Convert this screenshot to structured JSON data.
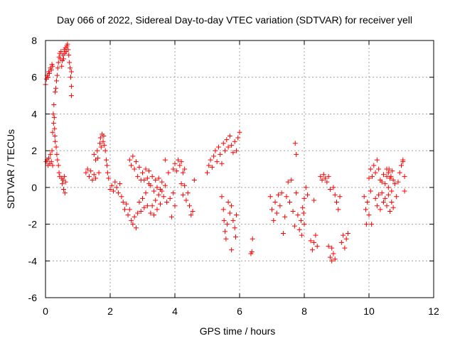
{
  "chart_data": {
    "type": "scatter",
    "title": "Day 066 of 2022, Sidereal Day-to-day VTEC variation (SDTVAR) for receiver yell",
    "xlabel": "GPS time / hours",
    "ylabel": "SDTVAR / TECUs",
    "xlim": [
      0,
      12
    ],
    "ylim": [
      -6,
      8
    ],
    "x_ticks": [
      0,
      2,
      4,
      6,
      8,
      10,
      12
    ],
    "y_ticks": [
      -6,
      -4,
      -2,
      0,
      2,
      4,
      6,
      8
    ],
    "grid": true,
    "legend": "none",
    "marker": "plus",
    "series": [
      {
        "name": "SDTVAR",
        "color": "#ff0000",
        "points": [
          [
            0.0,
            5.6
          ],
          [
            0.03,
            5.9
          ],
          [
            0.05,
            6.1
          ],
          [
            0.08,
            6.0
          ],
          [
            0.1,
            6.3
          ],
          [
            0.12,
            6.2
          ],
          [
            0.15,
            6.5
          ],
          [
            0.18,
            6.4
          ],
          [
            0.2,
            6.7
          ],
          [
            0.22,
            6.6
          ],
          [
            0.02,
            1.4
          ],
          [
            0.05,
            1.5
          ],
          [
            0.08,
            1.2
          ],
          [
            0.1,
            1.6
          ],
          [
            0.13,
            1.3
          ],
          [
            0.15,
            1.8
          ],
          [
            0.18,
            1.4
          ],
          [
            0.2,
            2.0
          ],
          [
            0.22,
            1.2
          ],
          [
            0.22,
            3.0
          ],
          [
            0.24,
            4.0
          ],
          [
            0.25,
            3.5
          ],
          [
            0.26,
            4.5
          ],
          [
            0.27,
            3.8
          ],
          [
            0.28,
            3.2
          ],
          [
            0.29,
            2.8
          ],
          [
            0.3,
            2.5
          ],
          [
            0.3,
            5.2
          ],
          [
            0.32,
            5.4
          ],
          [
            0.34,
            5.8
          ],
          [
            0.36,
            6.1
          ],
          [
            0.38,
            6.5
          ],
          [
            0.4,
            6.8
          ],
          [
            0.42,
            7.1
          ],
          [
            0.44,
            7.3
          ],
          [
            0.46,
            7.0
          ],
          [
            0.48,
            7.4
          ],
          [
            0.33,
            2.2
          ],
          [
            0.35,
            1.8
          ],
          [
            0.37,
            1.5
          ],
          [
            0.4,
            1.2
          ],
          [
            0.42,
            0.8
          ],
          [
            0.44,
            0.6
          ],
          [
            0.5,
            6.6
          ],
          [
            0.52,
            6.9
          ],
          [
            0.54,
            7.2
          ],
          [
            0.56,
            7.0
          ],
          [
            0.58,
            7.5
          ],
          [
            0.6,
            7.3
          ],
          [
            0.62,
            7.6
          ],
          [
            0.64,
            7.4
          ],
          [
            0.66,
            7.7
          ],
          [
            0.68,
            7.8
          ],
          [
            0.5,
            0.5
          ],
          [
            0.52,
            0.2
          ],
          [
            0.54,
            0.4
          ],
          [
            0.56,
            -0.1
          ],
          [
            0.58,
            0.6
          ],
          [
            0.6,
            -0.3
          ],
          [
            0.62,
            0.3
          ],
          [
            0.7,
            7.5
          ],
          [
            0.72,
            7.2
          ],
          [
            0.74,
            6.8
          ],
          [
            0.76,
            6.5
          ],
          [
            0.78,
            6.0
          ],
          [
            0.8,
            5.5
          ],
          [
            0.8,
            5.0
          ],
          [
            0.8,
            6.3
          ],
          [
            1.25,
            0.8
          ],
          [
            1.3,
            1.0
          ],
          [
            1.35,
            0.6
          ],
          [
            1.4,
            0.9
          ],
          [
            1.45,
            0.4
          ],
          [
            1.5,
            0.7
          ],
          [
            1.5,
            1.8
          ],
          [
            1.55,
            1.5
          ],
          [
            1.55,
            0.5
          ],
          [
            1.6,
            2.0
          ],
          [
            1.62,
            1.6
          ],
          [
            1.65,
            0.8
          ],
          [
            1.68,
            2.4
          ],
          [
            1.7,
            2.7
          ],
          [
            1.72,
            2.2
          ],
          [
            1.75,
            2.9
          ],
          [
            1.78,
            2.5
          ],
          [
            1.8,
            2.8
          ],
          [
            1.82,
            2.3
          ],
          [
            1.85,
            2.0
          ],
          [
            1.88,
            1.5
          ],
          [
            1.9,
            1.2
          ],
          [
            1.92,
            0.8
          ],
          [
            1.95,
            0.5
          ],
          [
            2.0,
            -0.1
          ],
          [
            2.05,
            0.1
          ],
          [
            2.1,
            -0.2
          ],
          [
            2.15,
            0.3
          ],
          [
            2.2,
            0.0
          ],
          [
            2.25,
            -0.3
          ],
          [
            2.3,
            0.2
          ],
          [
            2.35,
            -0.5
          ],
          [
            2.4,
            -0.8
          ],
          [
            2.45,
            -1.2
          ],
          [
            2.5,
            -0.9
          ],
          [
            2.55,
            -1.5
          ],
          [
            2.6,
            -1.2
          ],
          [
            2.65,
            -1.8
          ],
          [
            2.7,
            -2.0
          ],
          [
            2.75,
            -1.6
          ],
          [
            2.8,
            -2.2
          ],
          [
            2.6,
            1.5
          ],
          [
            2.65,
            1.2
          ],
          [
            2.7,
            1.7
          ],
          [
            2.75,
            1.0
          ],
          [
            2.8,
            1.4
          ],
          [
            2.85,
            0.6
          ],
          [
            2.9,
            1.1
          ],
          [
            2.95,
            0.4
          ],
          [
            2.85,
            -1.4
          ],
          [
            2.9,
            -0.8
          ],
          [
            2.95,
            -1.3
          ],
          [
            3.0,
            -0.6
          ],
          [
            3.05,
            -1.1
          ],
          [
            3.1,
            -0.3
          ],
          [
            3.15,
            -1.0
          ],
          [
            3.2,
            0.2
          ],
          [
            3.0,
            0.8
          ],
          [
            3.05,
            0.4
          ],
          [
            3.1,
            1.0
          ],
          [
            3.15,
            0.5
          ],
          [
            3.2,
            0.9
          ],
          [
            3.25,
            0.1
          ],
          [
            3.3,
            0.6
          ],
          [
            3.35,
            -0.2
          ],
          [
            3.25,
            -1.4
          ],
          [
            3.3,
            -1.0
          ],
          [
            3.35,
            -1.5
          ],
          [
            3.4,
            -0.7
          ],
          [
            3.45,
            -1.2
          ],
          [
            3.5,
            -0.4
          ],
          [
            3.55,
            -0.9
          ],
          [
            3.6,
            -0.2
          ],
          [
            3.4,
            0.4
          ],
          [
            3.45,
            0.0
          ],
          [
            3.5,
            0.5
          ],
          [
            3.55,
            -0.1
          ],
          [
            3.6,
            0.3
          ],
          [
            3.65,
            -0.5
          ],
          [
            3.7,
            0.1
          ],
          [
            3.75,
            -0.8
          ],
          [
            3.7,
            1.5
          ],
          [
            3.8,
            0.8
          ],
          [
            3.85,
            -0.6
          ],
          [
            3.9,
            -1.6
          ],
          [
            3.95,
            -0.3
          ],
          [
            4.0,
            -1.0
          ],
          [
            3.95,
            1.0
          ],
          [
            4.0,
            1.3
          ],
          [
            4.05,
            0.9
          ],
          [
            4.1,
            1.5
          ],
          [
            4.15,
            1.2
          ],
          [
            4.2,
            1.4
          ],
          [
            4.25,
            0.8
          ],
          [
            4.3,
            1.0
          ],
          [
            4.2,
            0.2
          ],
          [
            4.25,
            -0.4
          ],
          [
            4.3,
            0.1
          ],
          [
            4.35,
            -0.7
          ],
          [
            4.4,
            -0.3
          ],
          [
            4.45,
            -1.0
          ],
          [
            4.5,
            -1.5
          ],
          [
            4.55,
            -1.3
          ],
          [
            4.6,
            0.4
          ],
          [
            5.0,
            0.8
          ],
          [
            5.05,
            1.2
          ],
          [
            5.1,
            1.5
          ],
          [
            5.15,
            1.1
          ],
          [
            5.2,
            1.7
          ],
          [
            5.25,
            2.0
          ],
          [
            5.3,
            1.4
          ],
          [
            5.35,
            2.2
          ],
          [
            5.4,
            1.8
          ],
          [
            5.45,
            1.3
          ],
          [
            5.5,
            2.4
          ],
          [
            5.55,
            2.0
          ],
          [
            5.6,
            2.6
          ],
          [
            5.65,
            2.2
          ],
          [
            5.7,
            2.8
          ],
          [
            5.75,
            2.3
          ],
          [
            5.8,
            1.9
          ],
          [
            5.85,
            2.5
          ],
          [
            5.9,
            2.0
          ],
          [
            5.95,
            2.7
          ],
          [
            6.0,
            3.0
          ],
          [
            5.45,
            -0.5
          ],
          [
            5.5,
            -1.2
          ],
          [
            5.52,
            -1.8
          ],
          [
            5.55,
            -2.4
          ],
          [
            5.58,
            -2.8
          ],
          [
            5.62,
            -2.0
          ],
          [
            5.65,
            -0.8
          ],
          [
            5.7,
            -1.4
          ],
          [
            5.75,
            -1.0
          ],
          [
            5.8,
            -1.8
          ],
          [
            5.85,
            -2.2
          ],
          [
            5.88,
            -2.7
          ],
          [
            5.9,
            -1.5
          ],
          [
            5.75,
            -3.4
          ],
          [
            6.35,
            -3.6
          ],
          [
            6.4,
            -2.8
          ],
          [
            6.38,
            -3.5
          ],
          [
            6.95,
            -0.5
          ],
          [
            7.0,
            -1.2
          ],
          [
            7.05,
            -1.8
          ],
          [
            7.1,
            -0.8
          ],
          [
            7.15,
            -1.4
          ],
          [
            7.2,
            -0.4
          ],
          [
            7.25,
            -1.0
          ],
          [
            7.3,
            -0.3
          ],
          [
            7.35,
            -2.5
          ],
          [
            7.4,
            -1.6
          ],
          [
            7.45,
            -0.5
          ],
          [
            7.5,
            0.3
          ],
          [
            7.55,
            -0.8
          ],
          [
            7.6,
            0.4
          ],
          [
            7.65,
            -1.3
          ],
          [
            7.7,
            -2.1
          ],
          [
            7.72,
            2.4
          ],
          [
            7.75,
            1.8
          ],
          [
            7.75,
            -0.3
          ],
          [
            7.8,
            -1.5
          ],
          [
            7.85,
            -2.3
          ],
          [
            7.9,
            -1.8
          ],
          [
            7.92,
            -2.6
          ],
          [
            7.95,
            -1.1
          ],
          [
            8.0,
            -2.0
          ],
          [
            8.05,
            0.0
          ],
          [
            8.1,
            -0.4
          ],
          [
            8.0,
            -0.6
          ],
          [
            7.98,
            -1.4
          ],
          [
            8.2,
            -2.9
          ],
          [
            8.25,
            -3.4
          ],
          [
            8.3,
            -3.0
          ],
          [
            8.35,
            -2.6
          ],
          [
            8.4,
            -3.2
          ],
          [
            8.3,
            -0.7
          ],
          [
            8.5,
            0.6
          ],
          [
            8.55,
            0.4
          ],
          [
            8.6,
            0.7
          ],
          [
            8.65,
            0.5
          ],
          [
            8.7,
            0.3
          ],
          [
            8.75,
            0.6
          ],
          [
            8.75,
            -3.2
          ],
          [
            8.8,
            -3.8
          ],
          [
            8.85,
            -4.0
          ],
          [
            8.9,
            -3.6
          ],
          [
            8.95,
            -3.9
          ],
          [
            8.85,
            -3.3
          ],
          [
            8.8,
            -0.1
          ],
          [
            8.9,
            0.0
          ],
          [
            8.95,
            -0.4
          ],
          [
            9.0,
            -0.8
          ],
          [
            9.05,
            -1.2
          ],
          [
            9.1,
            -0.5
          ],
          [
            9.15,
            -3.0
          ],
          [
            9.2,
            -2.6
          ],
          [
            9.25,
            -3.3
          ],
          [
            9.3,
            -2.8
          ],
          [
            9.35,
            -2.5
          ],
          [
            9.85,
            -0.5
          ],
          [
            9.9,
            -1.2
          ],
          [
            9.92,
            -2.0
          ],
          [
            9.95,
            -0.8
          ],
          [
            10.0,
            -1.5
          ],
          [
            10.05,
            -0.2
          ],
          [
            10.08,
            -2.0
          ],
          [
            10.0,
            0.5
          ],
          [
            10.05,
            1.0
          ],
          [
            10.1,
            0.6
          ],
          [
            10.15,
            1.2
          ],
          [
            10.2,
            0.8
          ],
          [
            10.25,
            1.5
          ],
          [
            10.3,
            1.0
          ],
          [
            10.35,
            0.4
          ],
          [
            10.2,
            -0.6
          ],
          [
            10.25,
            -1.0
          ],
          [
            10.3,
            -0.4
          ],
          [
            10.35,
            -1.2
          ],
          [
            10.4,
            -0.3
          ],
          [
            10.45,
            -0.8
          ],
          [
            10.4,
            0.3
          ],
          [
            10.45,
            0.7
          ],
          [
            10.5,
            0.2
          ],
          [
            10.55,
            0.6
          ],
          [
            10.6,
            0.0
          ],
          [
            10.65,
            0.5
          ],
          [
            10.7,
            -0.2
          ],
          [
            10.75,
            0.4
          ],
          [
            10.5,
            -0.6
          ],
          [
            10.55,
            -1.0
          ],
          [
            10.6,
            -0.4
          ],
          [
            10.65,
            -1.3
          ],
          [
            10.7,
            -0.8
          ],
          [
            10.75,
            -1.1
          ],
          [
            10.55,
            1.0
          ],
          [
            10.6,
            0.8
          ],
          [
            10.62,
            1.0
          ],
          [
            10.68,
            0.6
          ],
          [
            10.72,
            0.9
          ],
          [
            10.8,
            0.2
          ],
          [
            10.85,
            -0.5
          ],
          [
            10.9,
            0.3
          ],
          [
            10.95,
            0.8
          ],
          [
            11.0,
            1.2
          ],
          [
            11.05,
            1.4
          ],
          [
            11.1,
            0.6
          ],
          [
            11.1,
            -0.2
          ],
          [
            11.05,
            1.5
          ]
        ]
      }
    ]
  }
}
